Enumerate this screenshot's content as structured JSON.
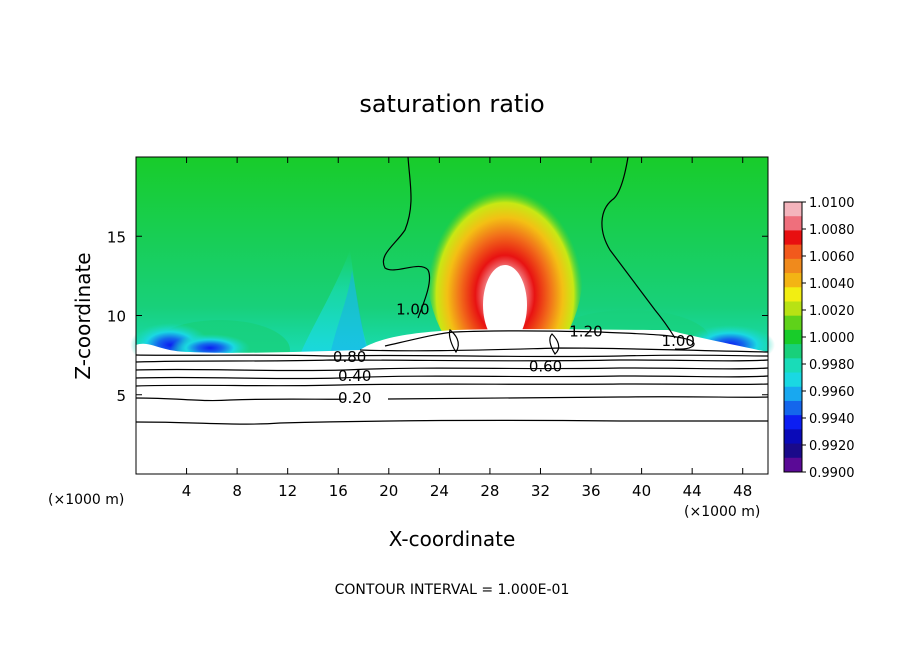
{
  "chart_data": {
    "type": "heatmap",
    "title": "saturation ratio",
    "xlabel": "X-coordinate",
    "ylabel": "Z-coordinate",
    "x_unit_left": "(×1000 m)",
    "x_unit_right": "(×1000 m)",
    "xlim": [
      0,
      50
    ],
    "ylim": [
      0,
      20
    ],
    "x_ticks": [
      4,
      8,
      12,
      16,
      20,
      24,
      28,
      32,
      36,
      40,
      44,
      48
    ],
    "y_ticks": [
      5,
      10,
      15
    ],
    "colorbar": {
      "ticks": [
        "1.0100",
        "1.0080",
        "1.0060",
        "1.0040",
        "1.0020",
        "1.0000",
        "0.9980",
        "0.9960",
        "0.9940",
        "0.9920",
        "0.9900"
      ],
      "colors": [
        "#f4b4bc",
        "#ef6f7c",
        "#e80f10",
        "#f2591c",
        "#f08a1c",
        "#f3b414",
        "#f2ee12",
        "#b8e214",
        "#5fd21a",
        "#18cc2a",
        "#18d07a",
        "#19dcb8",
        "#1ad8e2",
        "#18a8f0",
        "#1466ec",
        "#0c1ef2",
        "#0a0ab8",
        "#1a0a8a",
        "#5a0a96"
      ]
    },
    "contour_labels": [
      {
        "text": "1.00",
        "x": 21.9,
        "y": 10.2
      },
      {
        "text": "1.20",
        "x": 35.6,
        "y": 8.8
      },
      {
        "text": "1.00",
        "x": 42.9,
        "y": 8.2
      },
      {
        "text": "0.80",
        "x": 16.9,
        "y": 7.2
      },
      {
        "text": "0.60",
        "x": 32.4,
        "y": 6.6
      },
      {
        "text": "0.40",
        "x": 17.3,
        "y": 6.0
      },
      {
        "text": "0.20",
        "x": 17.3,
        "y": 4.6
      }
    ],
    "contour_interval_text": "CONTOUR INTERVAL = 1.000E-01"
  }
}
